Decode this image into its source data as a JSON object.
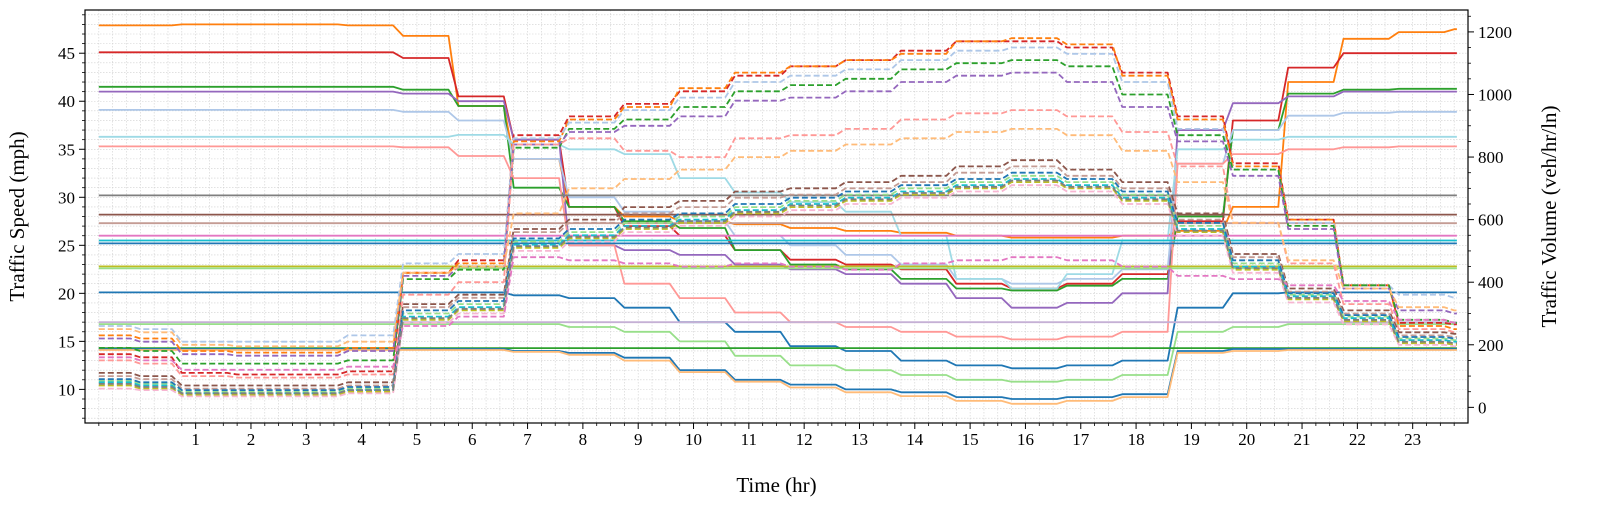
{
  "chart_data": {
    "type": "line",
    "xlabel": "Time (hr)",
    "ylabel_left": "Traffic Speed (mph)",
    "ylabel_right": "Traffic Volume (veh/hr/ln)",
    "xlim": [
      -1,
      24
    ],
    "ylim_left": [
      6.5,
      49.5
    ],
    "ylim_right": [
      -50,
      1270
    ],
    "x_ticks": [
      "1",
      "2",
      "3",
      "4",
      "5",
      "6",
      "7",
      "8",
      "9",
      "10",
      "11",
      "12",
      "13",
      "14",
      "15",
      "16",
      "17",
      "18",
      "19",
      "20",
      "21",
      "22",
      "23"
    ],
    "y_left_ticks": [
      "10",
      "15",
      "20",
      "25",
      "30",
      "35",
      "40",
      "45"
    ],
    "y_right_ticks": [
      "0",
      "200",
      "400",
      "600",
      "800",
      "1000",
      "1200"
    ],
    "grid": true,
    "legend": "none",
    "x": [
      -0.75,
      0,
      0.75,
      1.75,
      2.75,
      3.75,
      4.75,
      5.75,
      6.75,
      7.75,
      8.75,
      9.75,
      10.75,
      11.75,
      12.75,
      13.75,
      14.75,
      15.75,
      16.75,
      17.75,
      18.75,
      19.75,
      20.75,
      21.75,
      22.75,
      23.75
    ],
    "speed_series": [
      {
        "color": "#ff7f0e",
        "values": [
          47.9,
          47.9,
          48.0,
          48.0,
          48.0,
          47.9,
          46.8,
          39.5,
          34.0,
          29.0,
          28.0,
          27.5,
          27.2,
          26.8,
          26.5,
          26.3,
          26.0,
          25.8,
          25.8,
          26.0,
          26.5,
          29.0,
          42.0,
          46.5,
          47.2,
          47.5
        ]
      },
      {
        "color": "#d62728",
        "values": [
          45.1,
          45.1,
          45.1,
          45.1,
          45.1,
          45.1,
          44.5,
          40.5,
          36.0,
          29.0,
          27.0,
          26.0,
          24.5,
          23.5,
          23.0,
          22.5,
          21.0,
          20.5,
          21.0,
          22.0,
          27.5,
          38.0,
          43.5,
          45.0,
          45.0,
          45.0
        ]
      },
      {
        "color": "#2ca02c",
        "values": [
          41.5,
          41.5,
          41.5,
          41.5,
          41.5,
          41.5,
          41.2,
          39.5,
          31.0,
          29.0,
          27.5,
          26.8,
          24.5,
          23.0,
          22.5,
          21.5,
          20.5,
          20.3,
          20.8,
          21.5,
          28.0,
          37.0,
          40.8,
          41.2,
          41.3,
          41.3
        ]
      },
      {
        "color": "#9467bd",
        "values": [
          41.0,
          41.0,
          41.0,
          41.0,
          41.0,
          41.0,
          40.8,
          40.0,
          36.0,
          25.0,
          24.5,
          24.0,
          23.0,
          22.5,
          22.0,
          21.0,
          19.5,
          18.5,
          19.0,
          20.0,
          37.0,
          39.8,
          40.5,
          41.0,
          41.0,
          41.0
        ]
      },
      {
        "color": "#aec7e8",
        "values": [
          39.1,
          39.1,
          39.1,
          39.1,
          39.1,
          39.1,
          38.9,
          38.0,
          34.0,
          30.0,
          28.5,
          27.5,
          26.0,
          25.0,
          24.0,
          23.0,
          21.5,
          21.0,
          21.5,
          22.5,
          33.5,
          37.0,
          38.5,
          38.8,
          38.9,
          38.9
        ]
      },
      {
        "color": "#9edae5",
        "values": [
          36.3,
          36.3,
          36.3,
          36.3,
          36.3,
          36.3,
          36.3,
          36.5,
          35.5,
          35.0,
          34.5,
          32.0,
          30.5,
          29.5,
          28.5,
          26.0,
          21.5,
          20.5,
          22.0,
          25.5,
          35.0,
          36.0,
          36.3,
          36.3,
          36.3,
          36.3
        ]
      },
      {
        "color": "#ff9896",
        "values": [
          35.3,
          35.3,
          35.3,
          35.3,
          35.3,
          35.3,
          35.2,
          34.3,
          32.0,
          25.0,
          21.0,
          19.5,
          18.0,
          17.0,
          16.5,
          16.0,
          15.5,
          15.2,
          15.5,
          16.0,
          33.5,
          34.5,
          35.0,
          35.2,
          35.3,
          35.3
        ]
      },
      {
        "color": "#7f7f7f",
        "values": [
          30.2,
          30.2,
          30.2,
          30.2,
          30.2,
          30.2,
          30.2,
          30.2,
          30.2,
          30.2,
          30.2,
          30.2,
          30.2,
          30.2,
          30.2,
          30.2,
          30.2,
          30.2,
          30.2,
          30.2,
          30.2,
          30.2,
          30.2,
          30.2,
          30.2,
          30.2
        ]
      },
      {
        "color": "#8c564b",
        "values": [
          28.2,
          28.2,
          28.2,
          28.2,
          28.2,
          28.2,
          28.2,
          28.2,
          28.2,
          28.2,
          28.2,
          28.2,
          28.2,
          28.2,
          28.2,
          28.2,
          28.2,
          28.2,
          28.2,
          28.2,
          28.2,
          28.2,
          28.2,
          28.2,
          28.2,
          28.2
        ]
      },
      {
        "color": "#c49c94",
        "values": [
          27.3,
          27.3,
          27.3,
          27.3,
          27.3,
          27.3,
          27.3,
          27.3,
          27.3,
          27.3,
          27.3,
          27.3,
          27.3,
          27.3,
          27.3,
          27.3,
          27.3,
          27.3,
          27.3,
          27.3,
          27.3,
          27.3,
          27.3,
          27.3,
          27.3,
          27.3
        ]
      },
      {
        "color": "#e377c2",
        "values": [
          26.0,
          26.0,
          26.0,
          26.0,
          26.0,
          26.0,
          26.0,
          26.0,
          26.0,
          26.0,
          26.0,
          26.0,
          26.0,
          26.0,
          26.0,
          26.0,
          26.0,
          26.0,
          26.0,
          26.0,
          26.0,
          26.0,
          26.0,
          26.0,
          26.0,
          26.0
        ]
      },
      {
        "color": "#17becf",
        "values": [
          25.5,
          25.5,
          25.5,
          25.5,
          25.5,
          25.5,
          25.5,
          25.5,
          25.5,
          25.5,
          25.5,
          25.5,
          25.5,
          25.5,
          25.5,
          25.5,
          25.5,
          25.5,
          25.5,
          25.5,
          25.5,
          25.5,
          25.5,
          25.5,
          25.5,
          25.5
        ]
      },
      {
        "color": "#1f77b4",
        "values": [
          25.2,
          25.2,
          25.2,
          25.2,
          25.2,
          25.2,
          25.2,
          25.2,
          25.2,
          25.2,
          25.2,
          25.2,
          25.2,
          25.2,
          25.2,
          25.2,
          25.2,
          25.2,
          25.2,
          25.2,
          25.2,
          25.2,
          25.2,
          25.2,
          25.2,
          25.2
        ]
      },
      {
        "color": "#bcbd22",
        "values": [
          22.8,
          22.8,
          22.8,
          22.8,
          22.8,
          22.8,
          22.8,
          22.8,
          22.8,
          22.8,
          22.8,
          22.8,
          22.8,
          22.8,
          22.8,
          22.8,
          22.8,
          22.8,
          22.8,
          22.8,
          22.8,
          22.8,
          22.8,
          22.8,
          22.8,
          22.8
        ]
      },
      {
        "color": "#98df8a",
        "values": [
          22.6,
          22.6,
          22.6,
          22.6,
          22.6,
          22.6,
          22.6,
          22.6,
          22.6,
          22.6,
          22.6,
          22.6,
          22.6,
          22.6,
          22.6,
          22.6,
          22.6,
          22.6,
          22.6,
          22.6,
          22.6,
          22.6,
          22.6,
          22.6,
          22.6,
          22.6
        ]
      },
      {
        "color": "#1f77b4",
        "values": [
          20.1,
          20.1,
          20.1,
          20.1,
          20.1,
          20.1,
          20.1,
          20.1,
          19.8,
          19.5,
          18.5,
          17.0,
          16.0,
          14.5,
          14.0,
          13.0,
          12.5,
          12.2,
          12.5,
          13.0,
          18.5,
          20.0,
          20.1,
          20.1,
          20.1,
          20.1
        ]
      },
      {
        "color": "#c5b0d5",
        "values": [
          17.0,
          17.0,
          17.0,
          17.0,
          17.0,
          17.0,
          17.0,
          17.0,
          17.0,
          17.0,
          17.0,
          17.0,
          17.0,
          17.0,
          17.0,
          17.0,
          17.0,
          17.0,
          17.0,
          17.0,
          17.0,
          17.0,
          17.0,
          17.0,
          17.0,
          17.0
        ]
      },
      {
        "color": "#98df8a",
        "values": [
          16.8,
          16.8,
          16.8,
          16.8,
          16.8,
          16.8,
          16.8,
          16.8,
          16.8,
          16.5,
          16.0,
          15.0,
          13.5,
          12.5,
          12.0,
          11.5,
          11.0,
          10.8,
          11.0,
          11.5,
          16.0,
          16.5,
          16.8,
          16.8,
          16.8,
          16.8
        ]
      },
      {
        "color": "#2ca02c",
        "values": [
          14.3,
          14.3,
          14.3,
          14.3,
          14.3,
          14.3,
          14.3,
          14.3,
          14.3,
          14.3,
          14.3,
          14.3,
          14.3,
          14.3,
          14.3,
          14.3,
          14.3,
          14.3,
          14.3,
          14.3,
          14.3,
          14.3,
          14.3,
          14.3,
          14.3,
          14.3
        ]
      },
      {
        "color": "#1f77b4",
        "values": [
          14.2,
          14.2,
          14.2,
          14.2,
          14.2,
          14.2,
          14.2,
          14.2,
          14.0,
          13.8,
          13.3,
          12.0,
          11.0,
          10.5,
          10.0,
          9.7,
          9.2,
          9.0,
          9.2,
          9.5,
          14.0,
          14.2,
          14.2,
          14.2,
          14.2,
          14.2
        ]
      },
      {
        "color": "#ffbb78",
        "values": [
          14.1,
          14.1,
          14.1,
          14.1,
          14.1,
          14.1,
          14.1,
          14.1,
          13.9,
          13.6,
          13.0,
          11.8,
          10.8,
          10.2,
          9.7,
          9.3,
          8.8,
          8.5,
          8.8,
          9.2,
          13.8,
          14.0,
          14.1,
          14.1,
          14.1,
          14.1
        ]
      }
    ],
    "volume_series": [
      {
        "color": "#d62728",
        "values": [
          170,
          160,
          110,
          105,
          105,
          115,
          430,
          470,
          870,
          930,
          970,
          1010,
          1060,
          1090,
          1110,
          1140,
          1170,
          1170,
          1150,
          1070,
          930,
          780,
          600,
          390,
          270,
          265
        ]
      },
      {
        "color": "#ff7f0e",
        "values": [
          230,
          220,
          180,
          175,
          175,
          190,
          430,
          460,
          850,
          920,
          960,
          1020,
          1070,
          1090,
          1110,
          1130,
          1170,
          1180,
          1160,
          1060,
          920,
          770,
          600,
          390,
          260,
          250
        ]
      },
      {
        "color": "#aec7e8",
        "values": [
          260,
          250,
          210,
          210,
          210,
          230,
          460,
          490,
          860,
          910,
          950,
          990,
          1040,
          1060,
          1080,
          1110,
          1140,
          1150,
          1130,
          1040,
          890,
          760,
          590,
          390,
          360,
          350
        ]
      },
      {
        "color": "#2ca02c",
        "values": [
          190,
          180,
          140,
          140,
          140,
          150,
          410,
          440,
          830,
          890,
          920,
          960,
          1010,
          1030,
          1050,
          1080,
          1100,
          1110,
          1090,
          1000,
          870,
          760,
          580,
          390,
          280,
          270
        ]
      },
      {
        "color": "#9467bd",
        "values": [
          220,
          210,
          170,
          165,
          165,
          180,
          420,
          450,
          840,
          880,
          900,
          930,
          980,
          990,
          1010,
          1040,
          1060,
          1070,
          1040,
          960,
          850,
          740,
          570,
          380,
          310,
          300
        ]
      },
      {
        "color": "#ff9896",
        "values": [
          150,
          140,
          100,
          95,
          95,
          105,
          360,
          400,
          840,
          860,
          820,
          800,
          860,
          870,
          890,
          920,
          940,
          950,
          930,
          880,
          770,
          590,
          460,
          330,
          250,
          240
        ]
      },
      {
        "color": "#ffbb78",
        "values": [
          250,
          240,
          200,
          195,
          195,
          210,
          430,
          450,
          620,
          700,
          730,
          760,
          800,
          820,
          840,
          860,
          880,
          890,
          870,
          820,
          720,
          590,
          470,
          380,
          320,
          310
        ]
      },
      {
        "color": "#8c564b",
        "values": [
          110,
          100,
          70,
          70,
          70,
          80,
          330,
          360,
          570,
          600,
          640,
          660,
          690,
          700,
          720,
          740,
          770,
          790,
          760,
          720,
          620,
          490,
          380,
          310,
          240,
          235
        ]
      },
      {
        "color": "#c49c94",
        "values": [
          100,
          90,
          60,
          60,
          60,
          70,
          320,
          350,
          560,
          590,
          620,
          640,
          670,
          680,
          700,
          720,
          750,
          770,
          740,
          700,
          600,
          480,
          370,
          300,
          230,
          225
        ]
      },
      {
        "color": "#98df8a",
        "values": [
          85,
          75,
          50,
          50,
          50,
          60,
          300,
          330,
          530,
          560,
          590,
          610,
          640,
          660,
          680,
          700,
          720,
          740,
          720,
          680,
          580,
          460,
          360,
          290,
          220,
          215
        ]
      },
      {
        "color": "#1f77b4",
        "values": [
          90,
          80,
          55,
          55,
          55,
          65,
          310,
          340,
          540,
          570,
          600,
          620,
          650,
          670,
          690,
          710,
          730,
          750,
          730,
          690,
          590,
          470,
          365,
          295,
          225,
          220
        ]
      },
      {
        "color": "#17becf",
        "values": [
          80,
          70,
          45,
          45,
          45,
          55,
          290,
          320,
          520,
          550,
          580,
          600,
          630,
          650,
          670,
          690,
          710,
          730,
          710,
          670,
          570,
          450,
          355,
          285,
          215,
          210
        ]
      },
      {
        "color": "#bcbd22",
        "values": [
          70,
          60,
          40,
          40,
          40,
          50,
          280,
          310,
          510,
          540,
          570,
          590,
          620,
          640,
          660,
          680,
          700,
          720,
          700,
          660,
          560,
          440,
          345,
          275,
          205,
          200
        ]
      },
      {
        "color": "#f7b6d2",
        "values": [
          60,
          55,
          35,
          35,
          35,
          45,
          270,
          300,
          500,
          530,
          560,
          580,
          610,
          630,
          650,
          670,
          690,
          710,
          690,
          650,
          550,
          430,
          335,
          265,
          200,
          195
        ]
      },
      {
        "color": "#e377c2",
        "values": [
          160,
          150,
          120,
          120,
          120,
          130,
          260,
          290,
          480,
          470,
          460,
          450,
          460,
          450,
          440,
          460,
          470,
          480,
          470,
          450,
          420,
          410,
          390,
          340,
          280,
          270
        ]
      },
      {
        "color": "#7f7f7f",
        "values": [
          75,
          65,
          45,
          45,
          45,
          55,
          285,
          315,
          515,
          545,
          575,
          595,
          625,
          645,
          665,
          685,
          705,
          725,
          705,
          665,
          565,
          445,
          350,
          280,
          210,
          205
        ]
      }
    ]
  }
}
